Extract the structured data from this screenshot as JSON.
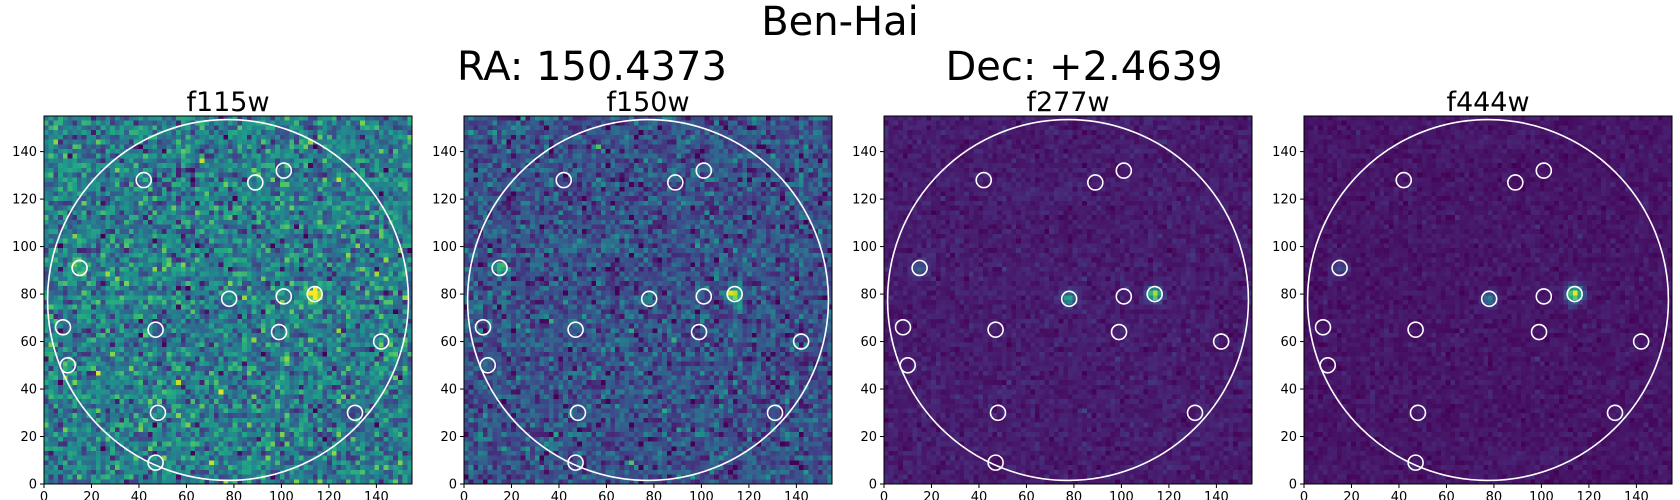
{
  "figure": {
    "title": "Ben-Hai",
    "ra_label": "RA: 150.4373",
    "dec_label": "Dec: +2.4639"
  },
  "colors": {
    "viridis_low": "#440154",
    "viridis_mid": "#21918c",
    "viridis_high": "#fde725",
    "aperture": "#ffffff"
  },
  "chart_data": {
    "type": "heatmap",
    "xlim": [
      0,
      155
    ],
    "ylim": [
      0,
      155
    ],
    "xticks": [
      0,
      20,
      40,
      60,
      80,
      100,
      120,
      140
    ],
    "yticks": [
      0,
      20,
      40,
      60,
      80,
      100,
      120,
      140
    ],
    "big_aperture": {
      "cx": 77.5,
      "cy": 77.5,
      "r": 76
    },
    "small_apertures": [
      {
        "x": 42,
        "y": 128
      },
      {
        "x": 89,
        "y": 127
      },
      {
        "x": 101,
        "y": 132
      },
      {
        "x": 15,
        "y": 91
      },
      {
        "x": 78,
        "y": 78
      },
      {
        "x": 101,
        "y": 79
      },
      {
        "x": 114,
        "y": 80
      },
      {
        "x": 8,
        "y": 66
      },
      {
        "x": 47,
        "y": 65
      },
      {
        "x": 99,
        "y": 64
      },
      {
        "x": 142,
        "y": 60
      },
      {
        "x": 10,
        "y": 50
      },
      {
        "x": 48,
        "y": 30
      },
      {
        "x": 131,
        "y": 30
      },
      {
        "x": 47,
        "y": 9
      }
    ],
    "panels": [
      {
        "title": "f115w",
        "background": 0.42,
        "noise": 0.3,
        "sources": [
          {
            "x": 114,
            "y": 80,
            "peak": 0.9,
            "sigma": 2.0
          },
          {
            "x": 15,
            "y": 91,
            "peak": 0.35,
            "sigma": 2.5
          },
          {
            "x": 142,
            "y": 60,
            "peak": 0.2,
            "sigma": 1.5
          },
          {
            "x": 10,
            "y": 50,
            "peak": 0.2,
            "sigma": 1.5
          }
        ]
      },
      {
        "title": "f150w",
        "background": 0.25,
        "noise": 0.22,
        "sources": [
          {
            "x": 114,
            "y": 80,
            "peak": 0.8,
            "sigma": 2.0
          },
          {
            "x": 15,
            "y": 91,
            "peak": 0.35,
            "sigma": 2.5
          },
          {
            "x": 78,
            "y": 78,
            "peak": 0.3,
            "sigma": 1.5
          }
        ]
      },
      {
        "title": "f277w",
        "background": 0.08,
        "noise": 0.06,
        "sources": [
          {
            "x": 114,
            "y": 80,
            "peak": 0.85,
            "sigma": 2.0
          },
          {
            "x": 78,
            "y": 78,
            "peak": 0.6,
            "sigma": 1.8
          },
          {
            "x": 15,
            "y": 91,
            "peak": 0.2,
            "sigma": 2.5
          }
        ]
      },
      {
        "title": "f444w",
        "background": 0.06,
        "noise": 0.05,
        "sources": [
          {
            "x": 114,
            "y": 80,
            "peak": 0.9,
            "sigma": 2.3
          },
          {
            "x": 78,
            "y": 78,
            "peak": 0.4,
            "sigma": 2.0
          },
          {
            "x": 15,
            "y": 91,
            "peak": 0.2,
            "sigma": 2.5
          }
        ]
      }
    ]
  }
}
